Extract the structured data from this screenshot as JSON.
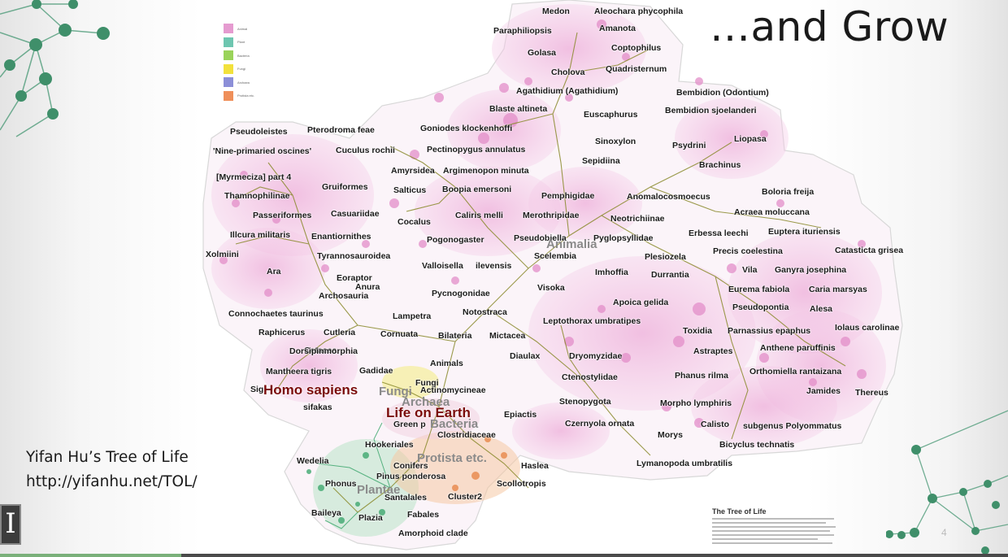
{
  "slide": {
    "title": "…and Grow",
    "attribution_name": "Yifan Hu’s  Tree of Life",
    "attribution_url": "http://yifanhu.net/TOL/",
    "slide_number": "4",
    "logo_glyph": "I",
    "video_progress": 0.18
  },
  "legend": [
    {
      "color": "#e59bd0",
      "label": "Animal"
    },
    {
      "color": "#6ec6b0",
      "label": "Plant"
    },
    {
      "color": "#9ad35a",
      "label": "Bacteria"
    },
    {
      "color": "#f2e13c",
      "label": "Fungi"
    },
    {
      "color": "#8c8fd8",
      "label": "Archaea"
    },
    {
      "color": "#ef8f5a",
      "label": "Protista etc."
    }
  ],
  "caption": {
    "title": "The Tree of Life"
  },
  "colors": {
    "animal": "#e59bd0",
    "branch": "#8a8a2c",
    "plant": "#42b07a",
    "protist": "#e89454",
    "fungi": "#e9e22e",
    "highlight": "#7a0a0a",
    "network": "#3f8f6a"
  },
  "map_labels": [
    {
      "text": "Medon"
    },
    {
      "text": "Aleochara phycophila"
    },
    {
      "text": "Paraphiliopsis"
    },
    {
      "text": "Amanota"
    },
    {
      "text": "Golasa"
    },
    {
      "text": "Coptophilus"
    },
    {
      "text": "Cholova"
    },
    {
      "text": "Quadristernum"
    },
    {
      "text": "Agathidium (Agathidium)"
    },
    {
      "text": "Bembidion (Odontium)"
    },
    {
      "text": "Blaste altineta"
    },
    {
      "text": "Euscaphurus"
    },
    {
      "text": "Bembidion sjoelanderi"
    },
    {
      "text": "Goniodes klockenhoffi"
    },
    {
      "text": "Pseudoleistes"
    },
    {
      "text": "Pterodroma feae"
    },
    {
      "text": "Sinoxylon"
    },
    {
      "text": "Psydrini"
    },
    {
      "text": "Liopasa"
    },
    {
      "text": "'Nine-primaried oscines'"
    },
    {
      "text": "Cuculus rochii"
    },
    {
      "text": "Pectinopygus annulatus"
    },
    {
      "text": "Sepidiina"
    },
    {
      "text": "Brachinus"
    },
    {
      "text": "Amyrsidea"
    },
    {
      "text": "Argimenopon minuta"
    },
    {
      "text": "[Myrmeciza] part 4"
    },
    {
      "text": "Gruiformes"
    },
    {
      "text": "Salticus"
    },
    {
      "text": "Boopia emersoni"
    },
    {
      "text": "Thamnophilinae"
    },
    {
      "text": "Pemphigidae"
    },
    {
      "text": "Anomalocosmoecus"
    },
    {
      "text": "Boloria freija"
    },
    {
      "text": "Passeriformes"
    },
    {
      "text": "Casuariidae"
    },
    {
      "text": "Cocalus"
    },
    {
      "text": "Caliris melli"
    },
    {
      "text": "Merothripidae"
    },
    {
      "text": "Neotrichiinae"
    },
    {
      "text": "Acraea moluccana"
    },
    {
      "text": "Illcura militaris"
    },
    {
      "text": "Enantiornithes"
    },
    {
      "text": "Pogonogaster"
    },
    {
      "text": "Pseudobiella"
    },
    {
      "text": "Pyglopsyllidae"
    },
    {
      "text": "Erbessa leechi"
    },
    {
      "text": "Euptera ituriensis"
    },
    {
      "text": "Catasticta grisea"
    },
    {
      "text": "Xolmiini"
    },
    {
      "text": "Tyrannosauroidea"
    },
    {
      "text": "Scelembia"
    },
    {
      "text": "Plesiozela"
    },
    {
      "text": "Precis coelestina"
    },
    {
      "text": "Valloisella"
    },
    {
      "text": "ilevensis"
    },
    {
      "text": "Ara"
    },
    {
      "text": "Imhoffia"
    },
    {
      "text": "Durrantia"
    },
    {
      "text": "Vila"
    },
    {
      "text": "Ganyra josephina"
    },
    {
      "text": "Eoraptor"
    },
    {
      "text": "Anura"
    },
    {
      "text": "Archosauria"
    },
    {
      "text": "Pycnogonidae"
    },
    {
      "text": "Visoka"
    },
    {
      "text": "Eurema fabiola"
    },
    {
      "text": "Caria marsyas"
    },
    {
      "text": "Apoica gelida"
    },
    {
      "text": "Pseudopontia"
    },
    {
      "text": "Alesa"
    },
    {
      "text": "Connochaetes taurinus"
    },
    {
      "text": "Notostraca"
    },
    {
      "text": "Lampetra"
    },
    {
      "text": "Leptothorax umbratipes"
    },
    {
      "text": "Iolaus carolinae"
    },
    {
      "text": "Raphicerus"
    },
    {
      "text": "Cutleria"
    },
    {
      "text": "Cornuata"
    },
    {
      "text": "Bilateria"
    },
    {
      "text": "Mictacea"
    },
    {
      "text": "Toxidia"
    },
    {
      "text": "Parnassius epaphus"
    },
    {
      "text": "Cetacea"
    },
    {
      "text": "Dorsipinmorphia"
    },
    {
      "text": "Anthene paruffinis"
    },
    {
      "text": "Astraptes"
    },
    {
      "text": "Diaulax"
    },
    {
      "text": "Dryomyzidae"
    },
    {
      "text": "Animals"
    },
    {
      "text": "Mantheera tigris"
    },
    {
      "text": "Gadidae"
    },
    {
      "text": "Phanus rilma"
    },
    {
      "text": "Orthomiella rantaizana"
    },
    {
      "text": "Ctenostylidae"
    },
    {
      "text": "Fungi"
    },
    {
      "text": "Actinomycineae"
    },
    {
      "text": "Jamides"
    },
    {
      "text": "Thereus"
    },
    {
      "text": "Sig"
    },
    {
      "text": "Stenopygota"
    },
    {
      "text": "Morpho lymphiris"
    },
    {
      "text": "sifakas"
    },
    {
      "text": "Epiactis"
    },
    {
      "text": "Green p"
    },
    {
      "text": "Czernyola ornata"
    },
    {
      "text": "Calisto"
    },
    {
      "text": "subgenus Polyommatus"
    },
    {
      "text": "Clostridiaceae"
    },
    {
      "text": "Morys"
    },
    {
      "text": "Hookeriales"
    },
    {
      "text": "Bicyclus technatis"
    },
    {
      "text": "Wedelia"
    },
    {
      "text": "Conifers"
    },
    {
      "text": "Haslea"
    },
    {
      "text": "Lymanopoda umbratilis"
    },
    {
      "text": "Pinus ponderosa"
    },
    {
      "text": "Phonus"
    },
    {
      "text": "Scollotropis"
    },
    {
      "text": "Santalales"
    },
    {
      "text": "Cluster2"
    },
    {
      "text": "Baileya"
    },
    {
      "text": "Plazia"
    },
    {
      "text": "Fabales"
    },
    {
      "text": "Amorphoid clade"
    }
  ],
  "region_labels": [
    {
      "text": "Animalia"
    },
    {
      "text": "Fungi"
    },
    {
      "text": "Archaea"
    },
    {
      "text": "Bacteria"
    },
    {
      "text": "Protista etc."
    },
    {
      "text": "Plantae"
    }
  ],
  "highlight_labels": [
    {
      "text": "Homo sapiens"
    },
    {
      "text": "Life on Earth"
    }
  ]
}
